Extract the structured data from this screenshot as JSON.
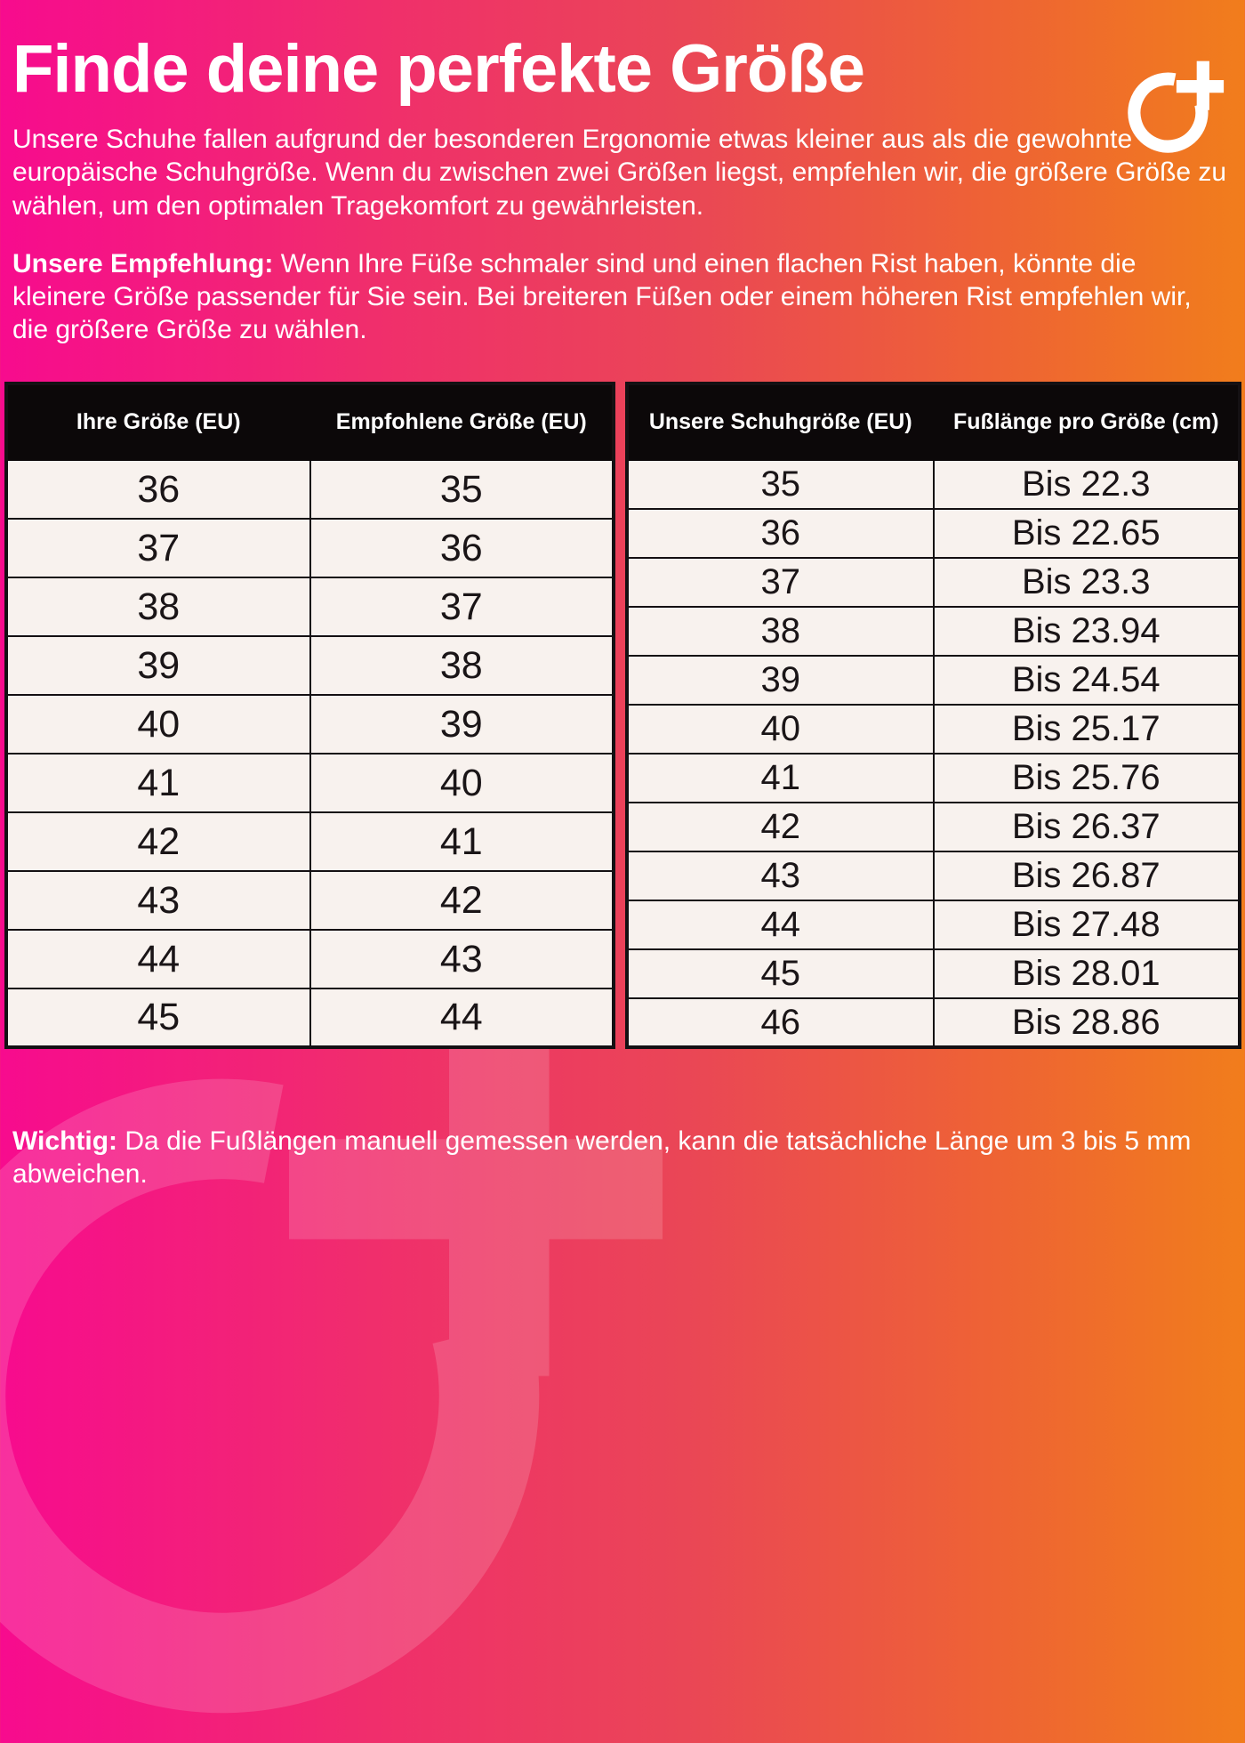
{
  "page": {
    "title": "Finde deine perfekte Größe",
    "intro": "Unsere Schuhe fallen aufgrund der besonderen Ergonomie etwas kleiner aus als die gewohnte europäische Schuhgröße. Wenn du zwischen zwei Größen liegst, empfehlen wir, die größere Größe zu wählen, um den optimalen Tragekomfort zu gewährleisten.",
    "recommendation_label": "Unsere Empfehlung:",
    "recommendation_text": "Wenn Ihre Füße schmaler sind und einen flachen Rist haben, könnte die kleinere Größe passender für Sie sein. Bei breiteren Füßen oder einem höheren Rist empfehlen wir, die größere Größe zu wählen.",
    "important_label": "Wichtig:",
    "important_text": "Da die Fußlängen manuell gemessen werden, kann die tatsächliche Länge um 3 bis 5 mm abweichen."
  },
  "logo": {
    "name": "circle-plus-brand-logo"
  },
  "colors": {
    "gradient_left": "#f70b8e",
    "gradient_mid": "#ea4656",
    "gradient_right": "#f17d1c",
    "table_header_bg": "#0c0809",
    "table_row_bg": "#f8f2ee",
    "table_border": "#141013",
    "text": "#ffffff"
  },
  "size_table": {
    "headers": [
      "Ihre Größe (EU)",
      "Empfohlene Größe (EU)"
    ],
    "rows": [
      [
        "36",
        "35"
      ],
      [
        "37",
        "36"
      ],
      [
        "38",
        "37"
      ],
      [
        "39",
        "38"
      ],
      [
        "40",
        "39"
      ],
      [
        "41",
        "40"
      ],
      [
        "42",
        "41"
      ],
      [
        "43",
        "42"
      ],
      [
        "44",
        "43"
      ],
      [
        "45",
        "44"
      ]
    ]
  },
  "footlength_table": {
    "headers": [
      "Unsere Schuhgröße (EU)",
      "Fußlänge pro Größe (cm)"
    ],
    "rows": [
      [
        "35",
        "Bis 22.3"
      ],
      [
        "36",
        "Bis 22.65"
      ],
      [
        "37",
        "Bis 23.3"
      ],
      [
        "38",
        "Bis 23.94"
      ],
      [
        "39",
        "Bis 24.54"
      ],
      [
        "40",
        "Bis 25.17"
      ],
      [
        "41",
        "Bis 25.76"
      ],
      [
        "42",
        "Bis 26.37"
      ],
      [
        "43",
        "Bis 26.87"
      ],
      [
        "44",
        "Bis 27.48"
      ],
      [
        "45",
        "Bis 28.01"
      ],
      [
        "46",
        "Bis 28.86"
      ]
    ]
  }
}
